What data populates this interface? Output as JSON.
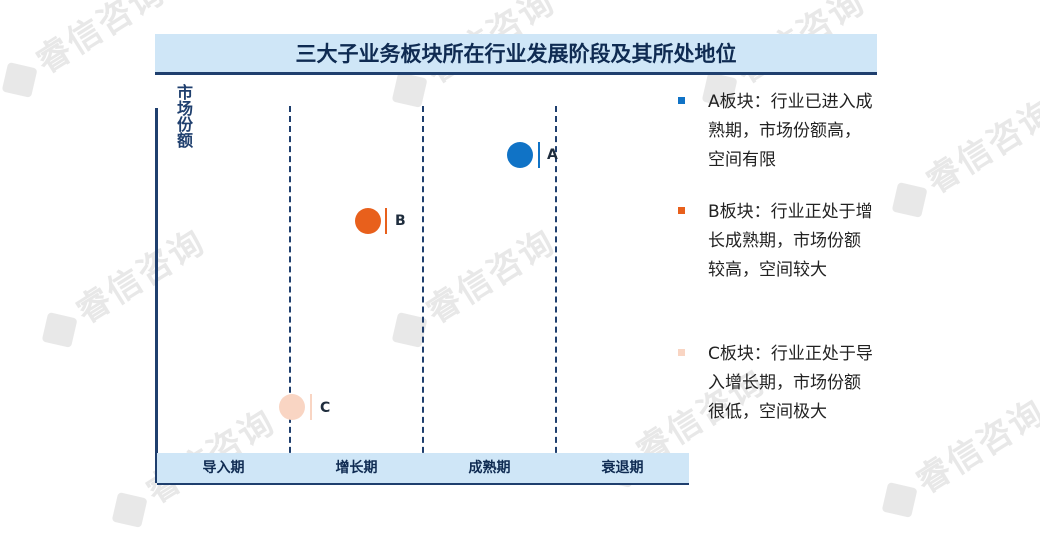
{
  "watermark": "睿信咨询",
  "title": "三大子业务板块所在行业发展阶段及其所处地位",
  "y_axis_label": "市场份额",
  "stages": [
    "导入期",
    "增长期",
    "成熟期",
    "衰退期"
  ],
  "bubbles": [
    {
      "label": "A",
      "color": "#1073c6"
    },
    {
      "label": "B",
      "color": "#e8601c"
    },
    {
      "label": "C",
      "color": "#f9d5c3"
    }
  ],
  "legend": [
    {
      "text": "A板块：行业已进入成熟期，市场份额高，空间有限",
      "color": "#1073c6"
    },
    {
      "text": "B板块：行业正处于增长成熟期，市场份额较高，空间较大",
      "color": "#e8601c"
    },
    {
      "text": "C板块：行业正处于导入增长期，市场份额很低，空间极大",
      "color": "#f9d5c3"
    }
  ]
}
